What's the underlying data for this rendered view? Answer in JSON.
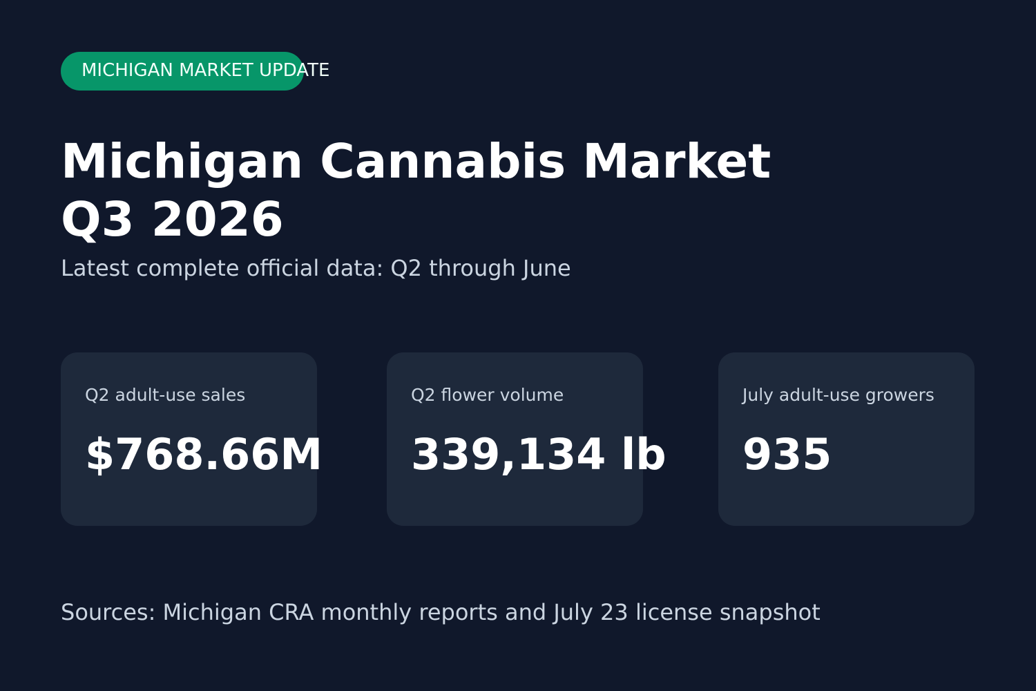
{
  "badge": {
    "label": "MICHIGAN MARKET UPDATE"
  },
  "header": {
    "title_line1": "Michigan Cannabis Market",
    "title_line2": "Q3 2026",
    "subtitle": "Latest complete official data: Q2 through June"
  },
  "cards": [
    {
      "label": "Q2 adult-use sales",
      "value": "$768.66M"
    },
    {
      "label": "Q2 flower volume",
      "value": "339,134 lb"
    },
    {
      "label": "July adult-use growers",
      "value": "935"
    }
  ],
  "footer": {
    "sources": "Sources: Michigan CRA monthly reports and July 23 license snapshot"
  },
  "colors": {
    "background": "#10182b",
    "badge": "#079669",
    "card": "#1e293b",
    "muted_text": "#cbd5e1",
    "primary_text": "#ffffff"
  }
}
